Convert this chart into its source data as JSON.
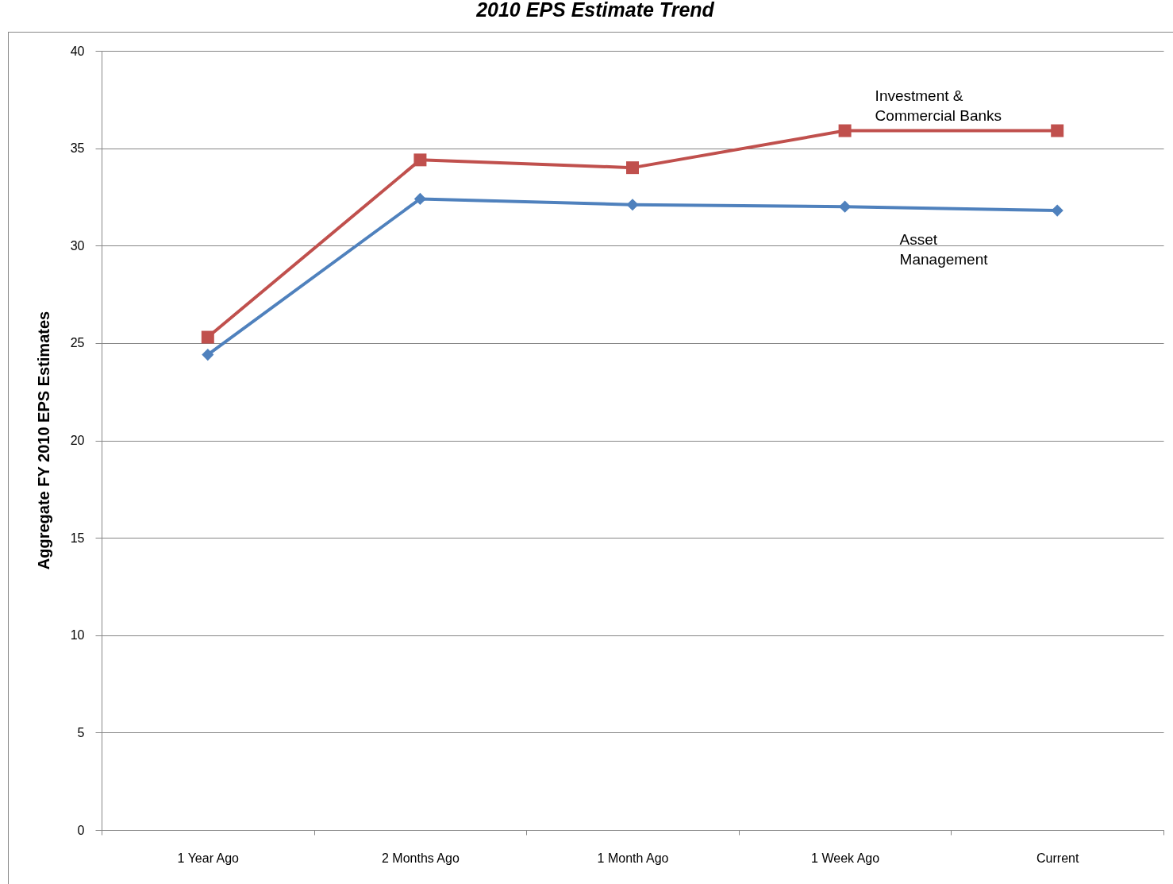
{
  "chart_data": {
    "type": "line",
    "title": "2010 EPS Estimate Trend",
    "ylabel": "Aggregate FY 2010 EPS Estimates",
    "categories": [
      "1 Year Ago",
      "2 Months Ago",
      "1 Month Ago",
      "1 Week Ago",
      "Current"
    ],
    "series": [
      {
        "name": "Investment & Commercial Banks",
        "color": "#c0504d",
        "marker": "square",
        "values": [
          25.3,
          34.4,
          34.0,
          35.9,
          35.9
        ]
      },
      {
        "name": "Asset Management",
        "color": "#4f81bd",
        "marker": "diamond",
        "values": [
          24.4,
          32.4,
          32.1,
          32.0,
          31.8
        ]
      }
    ],
    "ylim": [
      0,
      40
    ],
    "yticks": [
      0,
      5,
      10,
      15,
      20,
      25,
      30,
      35,
      40
    ],
    "grid": "y",
    "legend": false
  }
}
